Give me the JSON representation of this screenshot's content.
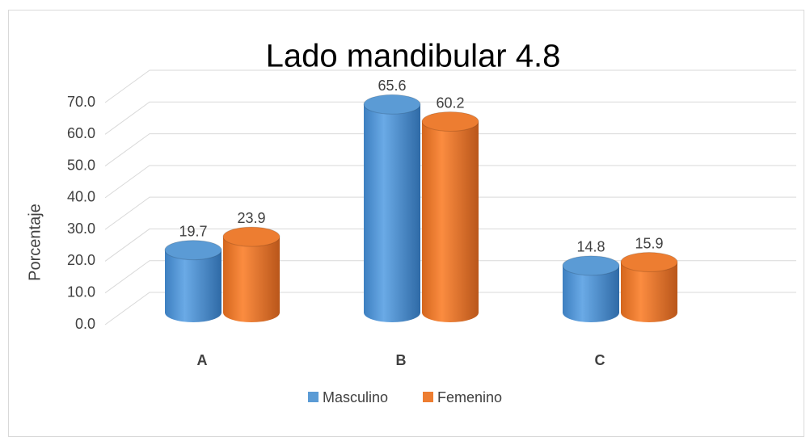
{
  "chart_data": {
    "type": "bar3d",
    "title": "Lado mandibular 4.8",
    "ylabel": "Porcentaje",
    "categories": [
      "A",
      "B",
      "C"
    ],
    "series": [
      {
        "name": "Masculino",
        "color": "#5b9bd5",
        "values": [
          19.7,
          65.6,
          14.8
        ]
      },
      {
        "name": "Femenino",
        "color": "#ed7d31",
        "values": [
          23.9,
          60.2,
          15.9
        ]
      }
    ],
    "ylim": [
      0,
      70
    ],
    "yticks": [
      {
        "value": 0,
        "label": "0.0"
      },
      {
        "value": 10,
        "label": "10.0"
      },
      {
        "value": 20,
        "label": "20.0"
      },
      {
        "value": 30,
        "label": "30.0"
      },
      {
        "value": 40,
        "label": "40.0"
      },
      {
        "value": 50,
        "label": "50.0"
      },
      {
        "value": 60,
        "label": "60.0"
      },
      {
        "value": 70,
        "label": "70.0"
      }
    ],
    "grid": true,
    "legend": "bottom"
  }
}
